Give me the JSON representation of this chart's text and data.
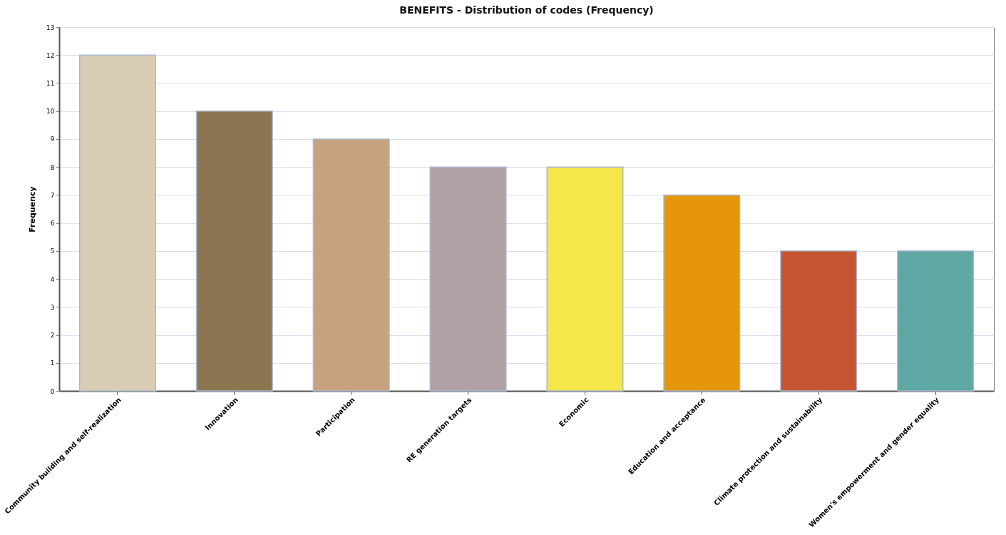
{
  "chart_data": {
    "type": "bar",
    "title": "BENEFITS - Distribution of codes (Frequency)",
    "ylabel": "Frequency",
    "categories": [
      "Community building and self-realization",
      "Innovation",
      "Participation",
      "RE generation targets",
      "Economic",
      "Education and acceptance",
      "Climate protection and sustainability",
      "Women's empowerment and gender equality"
    ],
    "values": [
      12,
      10,
      9,
      8,
      8,
      7,
      5,
      5
    ],
    "colors": [
      "#d8cdb4",
      "#8b7651",
      "#c8a27f",
      "#b0a1a5",
      "#f5e64a",
      "#e5960b",
      "#c45432",
      "#5ea7a2"
    ],
    "ylim": [
      0,
      13
    ],
    "yticks": [
      0,
      1,
      2,
      3,
      4,
      5,
      6,
      7,
      8,
      9,
      10,
      11,
      12,
      13
    ],
    "grid": "y"
  }
}
